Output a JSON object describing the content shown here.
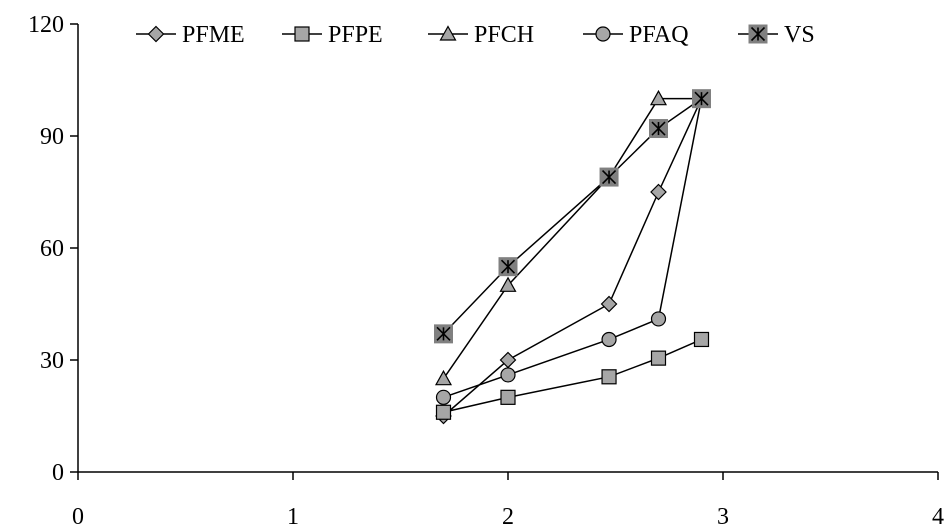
{
  "chart_data": {
    "type": "line",
    "title": "",
    "xlabel": "",
    "ylabel": "",
    "xlim": [
      0,
      4
    ],
    "ylim": [
      0,
      120
    ],
    "xticks": [
      0,
      1,
      2,
      3,
      4
    ],
    "yticks": [
      0,
      30,
      60,
      90,
      120
    ],
    "grid": false,
    "legend": "top",
    "series": [
      {
        "name": "PFME",
        "marker": "diamond",
        "points": [
          [
            1.7,
            15
          ],
          [
            2.0,
            30
          ],
          [
            2.47,
            45
          ],
          [
            2.7,
            75
          ],
          [
            2.9,
            100
          ]
        ]
      },
      {
        "name": "PFPE",
        "marker": "square",
        "points": [
          [
            1.7,
            16
          ],
          [
            2.0,
            20
          ],
          [
            2.47,
            25.5
          ],
          [
            2.7,
            30.5
          ],
          [
            2.9,
            35.5
          ]
        ]
      },
      {
        "name": "PFCH",
        "marker": "triangle",
        "points": [
          [
            1.7,
            25
          ],
          [
            2.0,
            50
          ],
          [
            2.47,
            79
          ],
          [
            2.7,
            100
          ],
          [
            2.9,
            100
          ]
        ]
      },
      {
        "name": "PFAQ",
        "marker": "circle",
        "points": [
          [
            1.7,
            20
          ],
          [
            2.0,
            26
          ],
          [
            2.47,
            35.5
          ],
          [
            2.7,
            41
          ],
          [
            2.9,
            100
          ]
        ]
      },
      {
        "name": "VS",
        "marker": "asterisk-square",
        "points": [
          [
            1.7,
            37
          ],
          [
            2.0,
            55
          ],
          [
            2.47,
            79
          ],
          [
            2.7,
            92
          ],
          [
            2.9,
            100
          ]
        ]
      }
    ],
    "colors": {
      "marker_fill": "#a6a6a6",
      "marker_stroke": "#000000",
      "line": "#000000",
      "asterisk_box": "#808080"
    }
  }
}
